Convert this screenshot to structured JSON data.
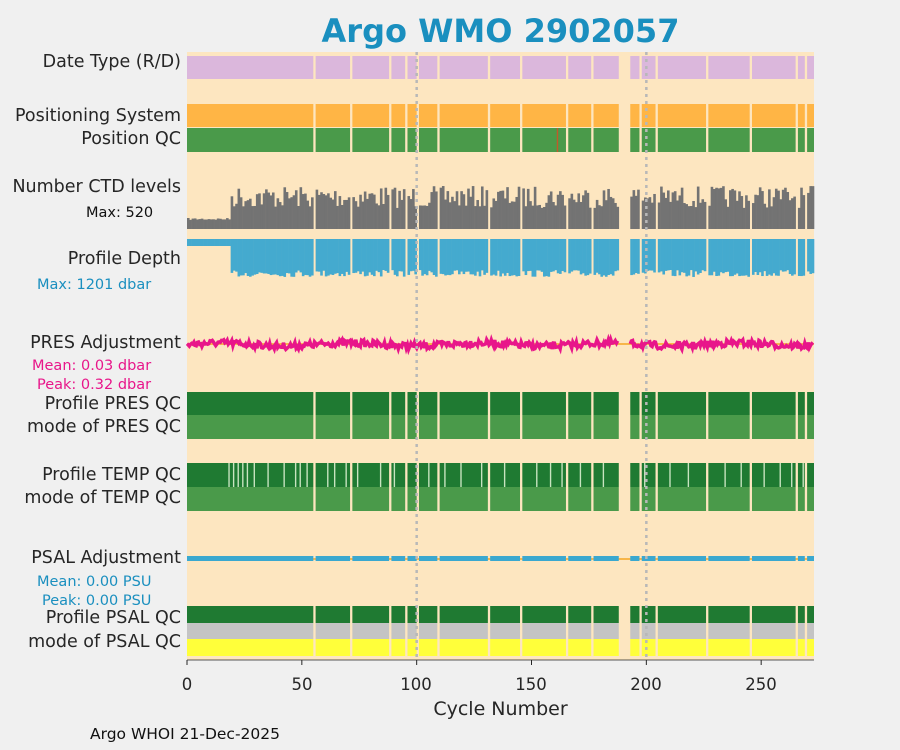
{
  "chart_data": {
    "type": "timeline",
    "title": "Argo WMO 2902057",
    "xlabel": "Cycle Number",
    "xlim": [
      0,
      273
    ],
    "xticks": [
      0,
      50,
      100,
      150,
      200,
      250
    ],
    "vlines": [
      100,
      200
    ],
    "gap": [
      188,
      193
    ],
    "row_labels": {
      "date_type": "Date Type (R/D)",
      "pos_system": "Positioning System",
      "pos_qc": "Position QC",
      "ctd_levels": "Number CTD levels",
      "profile_depth": "Profile Depth",
      "pres_adj": "PRES Adjustment",
      "prof_pres_qc": "Profile PRES QC",
      "mode_pres_qc": "mode of PRES QC",
      "prof_temp_qc": "Profile TEMP QC",
      "mode_temp_qc": "mode of TEMP QC",
      "psal_adj": "PSAL Adjustment",
      "prof_psal_qc": "Profile PSAL QC",
      "mode_psal_qc": "mode of PSAL QC"
    },
    "annotations": {
      "ctd_max": "Max: 520",
      "depth_max": "Max: 1201 dbar",
      "pres_mean": "Mean: 0.03 dbar",
      "pres_peak": "Peak: 0.32 dbar",
      "psal_mean": "Mean: 0.00 PSU",
      "psal_peak": "Peak: 0.00 PSU"
    },
    "stats": {
      "ctd_levels_max": 520,
      "profile_depth_max_dbar": 1201,
      "pres_adjustment_mean_dbar": 0.03,
      "pres_adjustment_peak_dbar": 0.32,
      "psal_adjustment_mean_psu": 0.0,
      "psal_adjustment_peak_psu": 0.0
    },
    "missing_cycles": [
      55,
      71,
      88,
      95,
      100,
      109,
      131,
      145,
      165,
      176,
      197,
      204,
      226,
      245,
      265,
      269
    ],
    "ctd_early_cycles": 19,
    "colors": {
      "background": "#fde6c0",
      "date_type": "#dbb7dc",
      "pos_system": "#ffb545",
      "pos_qc": "#4a9a4a",
      "ctd": "#737373",
      "depth": "#44aacf",
      "pres_adj": "#e8168a",
      "qc_good": "#1f7a32",
      "qc_mode": "#4a9a4a",
      "qc_light": "#c8e4c0",
      "psal_adj": "#3aa8cf",
      "psal_mode_grey": "#c4c4c4",
      "psal_mode_yellow": "#ffff3a",
      "vline": "#b8b8b8"
    }
  },
  "footer": "Argo WHOI 21-Dec-2025"
}
